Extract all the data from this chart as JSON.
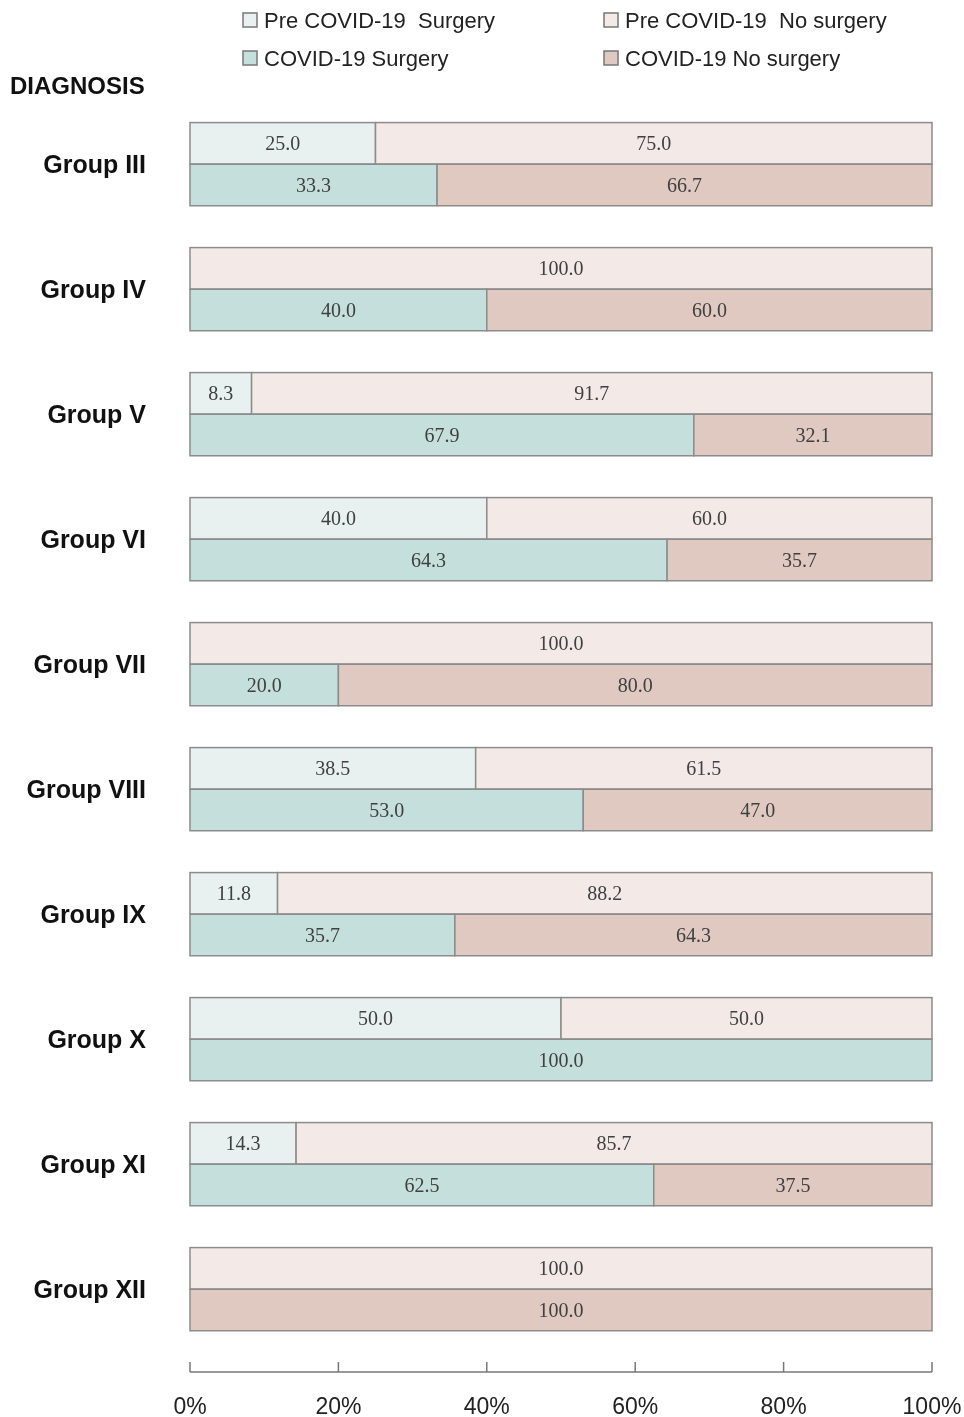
{
  "chart_data": {
    "type": "bar",
    "orientation": "horizontal",
    "stacked": true,
    "ylabel": "DIAGNOSIS",
    "legend": "top",
    "categories": [
      "Group III",
      null,
      null,
      "Group IV",
      null,
      null,
      "Group V",
      null,
      null,
      "Group VI",
      null,
      null,
      "Group VII",
      null,
      null,
      "Group VIII",
      null,
      null,
      "Group IX",
      null,
      null,
      "Group X",
      null,
      null,
      "Group XI",
      null,
      null,
      "Group XII",
      null,
      null
    ],
    "xlim": [
      0,
      100
    ],
    "xticks": [
      {
        "value": 0,
        "label": "0%"
      },
      {
        "value": 20,
        "label": "20%"
      },
      {
        "value": 40,
        "label": "40%"
      },
      {
        "value": 60,
        "label": "60%"
      },
      {
        "value": 80,
        "label": "80%"
      },
      {
        "value": 100,
        "label": "100%"
      }
    ],
    "series": [
      {
        "name": "Pre COVID-19  Surgery",
        "color": "#e8f1f0",
        "values": [
          25.0,
          null,
          null,
          0,
          null,
          null,
          8.3,
          null,
          null,
          40.0,
          null,
          null,
          0,
          null,
          null,
          38.5,
          null,
          null,
          11.8,
          null,
          null,
          50.0,
          null,
          null,
          14.3,
          null,
          null,
          0,
          null,
          null
        ],
        "value_labels": [
          "25.0",
          null,
          null,
          null,
          null,
          null,
          "8.3",
          null,
          null,
          "40.0",
          null,
          null,
          null,
          null,
          null,
          "38.5",
          null,
          null,
          "11.8",
          null,
          null,
          "50.0",
          null,
          null,
          "14.3",
          null,
          null,
          null,
          null,
          null
        ]
      },
      {
        "name": "Pre COVID-19  No surgery",
        "color": "#f3e9e7",
        "values": [
          75.0,
          null,
          null,
          100.0,
          null,
          null,
          91.7,
          null,
          null,
          60.0,
          null,
          null,
          100.0,
          null,
          null,
          61.5,
          null,
          null,
          88.2,
          null,
          null,
          50.0,
          null,
          null,
          85.7,
          null,
          null,
          100.0,
          null,
          null
        ],
        "value_labels": [
          "75.0",
          null,
          null,
          "100.0",
          null,
          null,
          "91.7",
          null,
          null,
          "60.0",
          null,
          null,
          "100.0",
          null,
          null,
          "61.5",
          null,
          null,
          "88.2",
          null,
          null,
          "50.0",
          null,
          null,
          "85.7",
          null,
          null,
          "100.0",
          null,
          null
        ]
      },
      {
        "name": "COVID-19 Surgery",
        "color": "#c5e0dc",
        "values": [
          null,
          33.3,
          null,
          null,
          40.0,
          null,
          null,
          67.9,
          null,
          null,
          64.3,
          null,
          null,
          20.0,
          null,
          null,
          53.0,
          null,
          null,
          35.7,
          null,
          null,
          100.0,
          null,
          null,
          62.5,
          null,
          null,
          0,
          null
        ],
        "value_labels": [
          null,
          "33.3",
          null,
          null,
          "40.0",
          null,
          null,
          "67.9",
          null,
          null,
          "64.3",
          null,
          null,
          "20.0",
          null,
          null,
          "53.0",
          null,
          null,
          "35.7",
          null,
          null,
          "100.0",
          null,
          null,
          "62.5",
          null,
          null,
          null,
          null
        ]
      },
      {
        "name": "COVID-19 No surgery",
        "color": "#dfc9c1",
        "values": [
          null,
          66.7,
          null,
          null,
          60.0,
          null,
          null,
          32.1,
          null,
          null,
          35.7,
          null,
          null,
          80.0,
          null,
          null,
          47.0,
          null,
          null,
          64.3,
          null,
          null,
          0,
          null,
          null,
          37.5,
          null,
          null,
          100.0,
          null
        ],
        "value_labels": [
          null,
          "66.7",
          null,
          null,
          "60.0",
          null,
          null,
          "32.1",
          null,
          null,
          "35.7",
          null,
          null,
          "80.0",
          null,
          null,
          "47.0",
          null,
          null,
          "64.3",
          null,
          null,
          null,
          null,
          null,
          "37.5",
          null,
          null,
          "100.0",
          null
        ]
      }
    ]
  }
}
